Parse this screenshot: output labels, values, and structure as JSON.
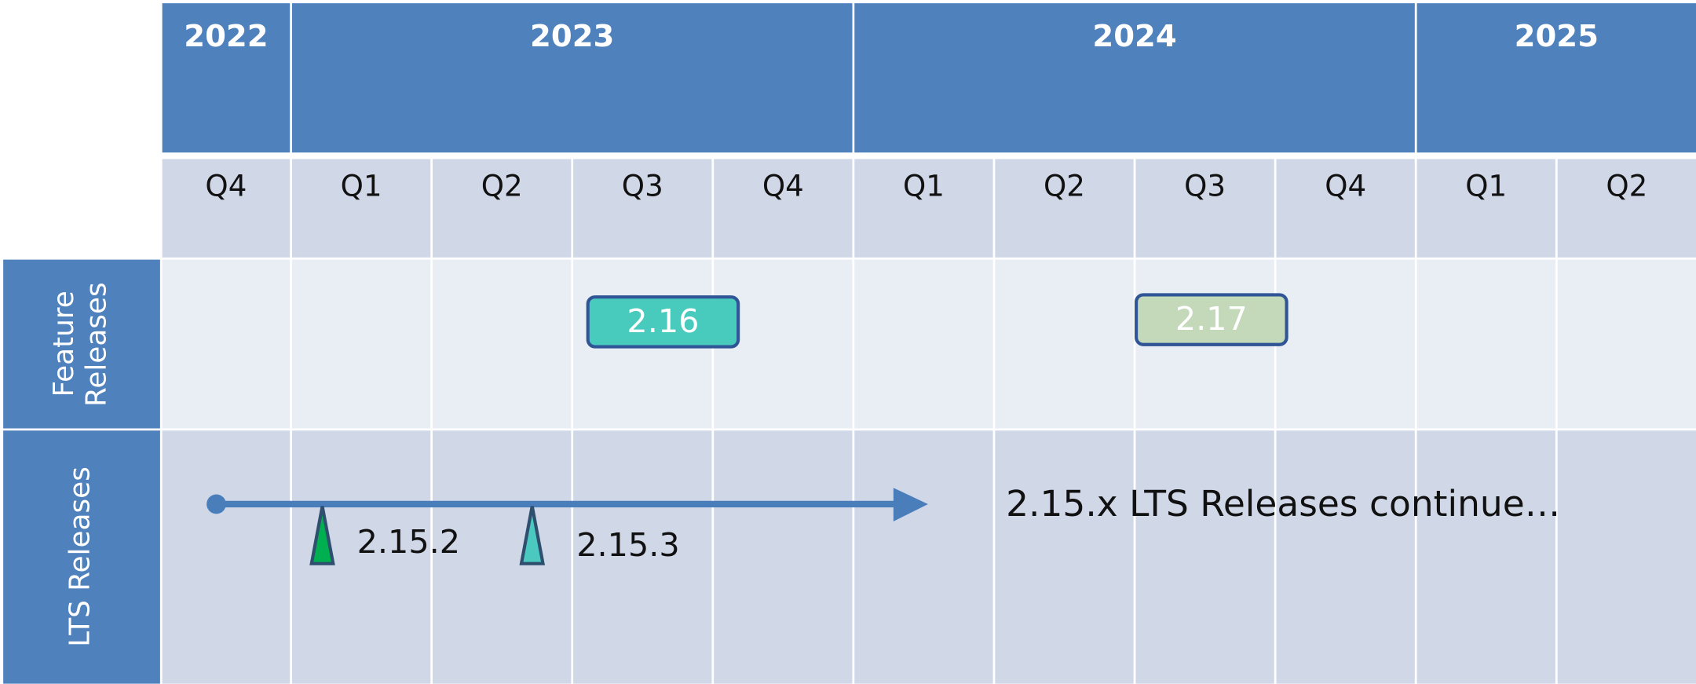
{
  "timeline": {
    "years": [
      {
        "label": "2022",
        "quarters": [
          "Q4"
        ]
      },
      {
        "label": "2023",
        "quarters": [
          "Q1",
          "Q2",
          "Q3",
          "Q4"
        ]
      },
      {
        "label": "2024",
        "quarters": [
          "Q1",
          "Q2",
          "Q3",
          "Q4"
        ]
      },
      {
        "label": "2025",
        "quarters": [
          "Q1",
          "Q2"
        ]
      }
    ],
    "rows": [
      {
        "label": "Feature Releases",
        "items": [
          "2.16",
          "2.17"
        ]
      },
      {
        "label": "LTS Releases",
        "items": [
          "2.15.2",
          "2.15.3"
        ],
        "annotation": "2.15.x LTS Releases continue…"
      }
    ]
  }
}
